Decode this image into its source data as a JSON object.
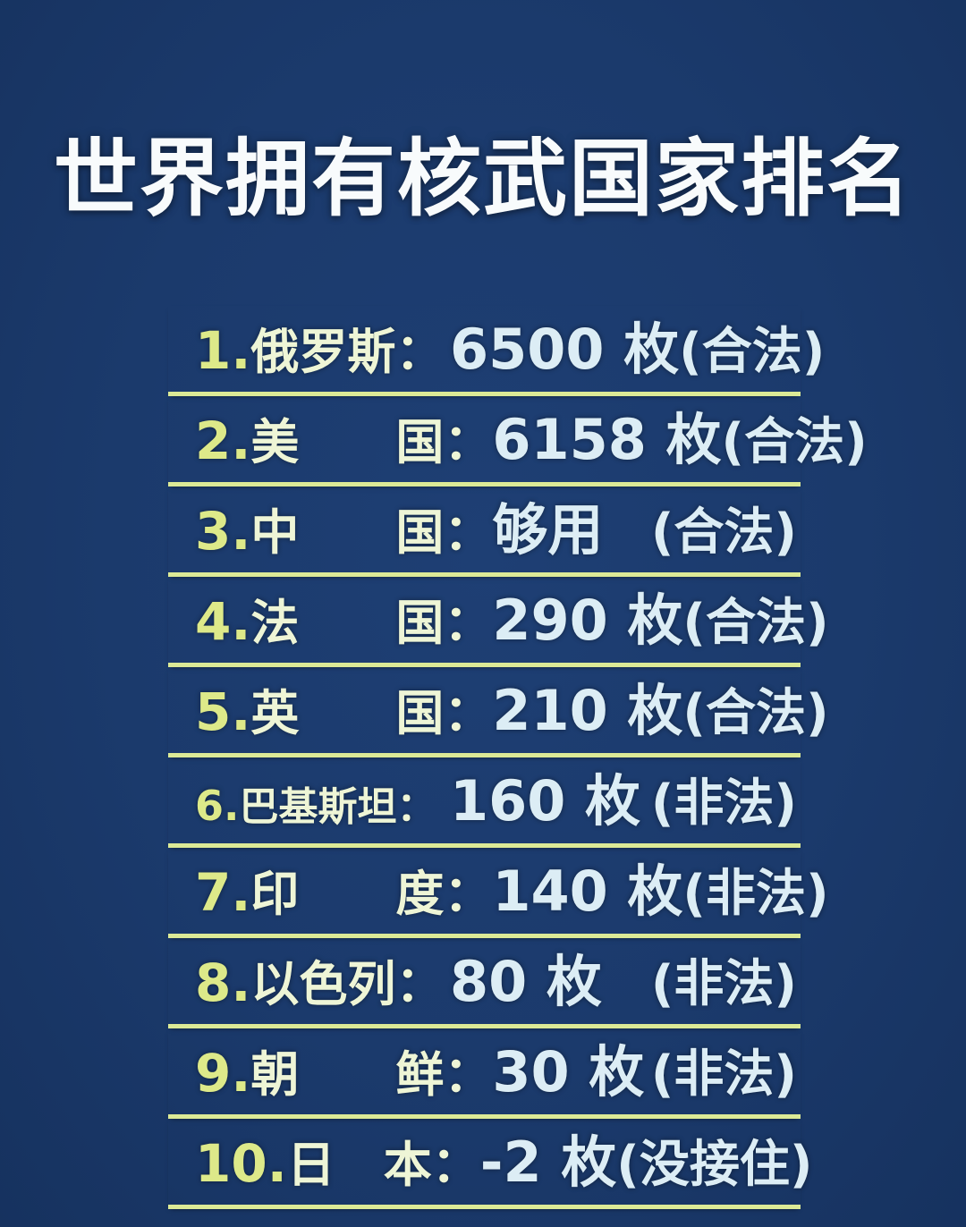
{
  "page": {
    "background_color": "#1b3a6c",
    "accent_color": "#dcea96",
    "rank_color": "#dde989",
    "name_color": "#eef5d6",
    "count_color": "#dcedf5",
    "title_color": "#f8fbfc"
  },
  "title": "世界拥有核武国家排名",
  "list": {
    "rows": [
      {
        "rank": "1.",
        "name": "俄罗斯：",
        "count": "6500 枚",
        "status": "(合法)"
      },
      {
        "rank": "2.",
        "name": "美　　国：",
        "count": "6158 枚",
        "status": "(合法)"
      },
      {
        "rank": "3.",
        "name": "中　　国：",
        "count": "够用",
        "status": "(合法)"
      },
      {
        "rank": "4.",
        "name": "法　　国：",
        "count": "290 枚",
        "status": "(合法)"
      },
      {
        "rank": "5.",
        "name": "英　　国：",
        "count": "210 枚",
        "status": "(合法)"
      },
      {
        "rank": "6.",
        "name": "巴基斯坦：",
        "count": "160 枚",
        "status": "(非法)"
      },
      {
        "rank": "7.",
        "name": "印　　度：",
        "count": "140 枚",
        "status": "(非法)"
      },
      {
        "rank": "8.",
        "name": "以色列：",
        "count": "80 枚",
        "status": "(非法)"
      },
      {
        "rank": "9.",
        "name": "朝　　鲜：",
        "count": "30 枚",
        "status": "(非法)"
      },
      {
        "rank": "10.",
        "name": "日　本：",
        "count": "-2 枚",
        "status": "(没接住)"
      }
    ]
  }
}
